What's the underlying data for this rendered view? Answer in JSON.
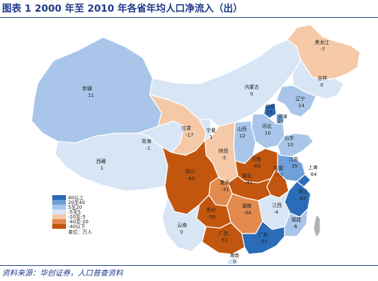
{
  "title": "图表   1    2000 年至 2010 年各省年均人口净流入（出）",
  "source": "资料来源：华创证券，人口普查资料",
  "legend": {
    "items": [
      {
        "label": "40以上",
        "color": "#2b6cb8"
      },
      {
        "label": "20至40",
        "color": "#6fa0d8"
      },
      {
        "label": "5至20",
        "color": "#a9c6ea"
      },
      {
        "label": "-5至5",
        "color": "#d7e5f5"
      },
      {
        "label": "-20至-5",
        "color": "#f5c9a8"
      },
      {
        "label": "-40至-20",
        "color": "#e38a4e"
      },
      {
        "label": "-40以下",
        "color": "#c2560e"
      }
    ],
    "unit": "单位：万人"
  },
  "provinces": [
    {
      "name": "新疆",
      "value": "11"
    },
    {
      "name": "西藏",
      "value": "1"
    },
    {
      "name": "青海",
      "value": "-1"
    },
    {
      "name": "甘肃",
      "value": "-17"
    },
    {
      "name": "宁夏",
      "value": "1"
    },
    {
      "name": "内蒙古",
      "value": "0"
    },
    {
      "name": "黑龙江",
      "value": "-7"
    },
    {
      "name": "吉林",
      "value": "0"
    },
    {
      "name": "辽宁",
      "value": "14"
    },
    {
      "name": "北京",
      "value": "55"
    },
    {
      "name": "天津",
      "value": "27"
    },
    {
      "name": "河北",
      "value": "10"
    },
    {
      "name": "山西",
      "value": "12"
    },
    {
      "name": "山东",
      "value": "10"
    },
    {
      "name": "陕西",
      "value": "-5"
    },
    {
      "name": "河南",
      "value": "-60"
    },
    {
      "name": "江苏",
      "value": "35"
    },
    {
      "name": "安徽",
      "value": "-73"
    },
    {
      "name": "上海",
      "value": "64"
    },
    {
      "name": "湖北",
      "value": "-41"
    },
    {
      "name": "四川",
      "value": "-62"
    },
    {
      "name": "重庆",
      "value": "-31"
    },
    {
      "name": "浙江",
      "value": "83"
    },
    {
      "name": "湖南",
      "value": "-34"
    },
    {
      "name": "江西",
      "value": "-4"
    },
    {
      "name": "贵州",
      "value": "-59"
    },
    {
      "name": "福建",
      "value": "6"
    },
    {
      "name": "云南",
      "value": "0"
    },
    {
      "name": "广西",
      "value": "-53"
    },
    {
      "name": "广东",
      "value": "57"
    },
    {
      "name": "海南",
      "value": "0"
    }
  ]
}
